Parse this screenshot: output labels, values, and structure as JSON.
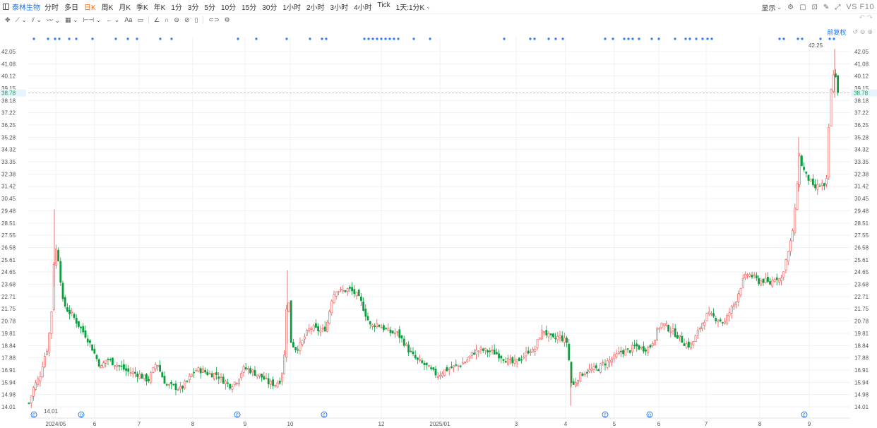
{
  "header": {
    "stock_name": "泰林生物",
    "periods": [
      "分时",
      "多日",
      "日K",
      "周K",
      "月K",
      "季K",
      "年K",
      "1分",
      "3分",
      "5分",
      "10分",
      "15分",
      "30分",
      "1小时",
      "2小时",
      "3小时",
      "4小时",
      "Tick"
    ],
    "active_period": "日K",
    "range_label": "1天:1分K",
    "display_label": "显示",
    "vs_label": "VS F10"
  },
  "toolbar": {
    "font_label": "Aa"
  },
  "adjust_label": "前复权",
  "colors": {
    "up": "#ef5350",
    "down": "#0a9e3d",
    "accent": "#1677ff",
    "grid": "#eef0f3",
    "price_line": "#f5a25d",
    "dot": "#2979ff"
  },
  "chart_data": {
    "type": "candlestick",
    "x_labels": [
      "2024/05",
      "6",
      "7",
      "8",
      "9",
      "10",
      "12",
      "2025/01",
      "3",
      "4",
      "5",
      "6",
      "7",
      "8",
      "9"
    ],
    "y_ticks": [
      14.01,
      14.98,
      15.94,
      16.91,
      17.88,
      18.84,
      19.81,
      20.78,
      21.75,
      22.71,
      23.68,
      24.65,
      25.61,
      26.58,
      27.55,
      28.51,
      29.48,
      30.45,
      31.42,
      32.38,
      33.35,
      34.32,
      35.28,
      36.25,
      37.22,
      38.18,
      39.15,
      40.12,
      41.08,
      42.05
    ],
    "ylim": [
      14.01,
      42.05
    ],
    "current_price": 38.78,
    "annotations": {
      "max_label": "42.25",
      "min_label": "14.01"
    },
    "event_markers": [
      "E",
      "Q",
      "E",
      "E",
      "E",
      "Q",
      "E"
    ],
    "description": "Daily candlestick chart: rises from ~14 to ~29 in May 2024, falls back to ~15-17 through Sep 2024, spikes to ~24 in Oct-Nov 2024, drifts 16-20 through Apr 2025 (low ~14 in Apr), then climbs steadily to ~34 in Aug 2025 and peaks at 42.25 in Sep 2025, closing near 38.78."
  }
}
